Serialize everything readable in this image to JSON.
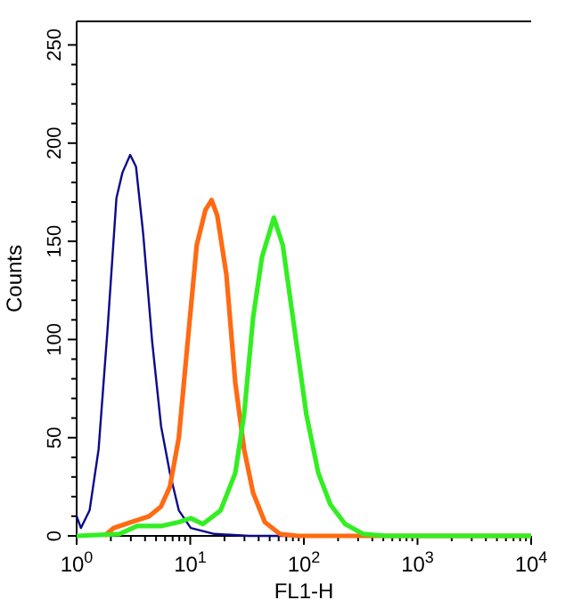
{
  "chart_data": {
    "type": "line",
    "xlabel": "FL1-H",
    "ylabel": "Counts",
    "log": "x",
    "xlim": [
      1,
      10000
    ],
    "ylim": [
      0,
      262
    ],
    "grid": false,
    "marker": "none",
    "line_style": "solid",
    "xticks": [
      {
        "value": 1,
        "label": "10$^{0}$"
      },
      {
        "value": 2,
        "label": null
      },
      {
        "value": 3,
        "label": null
      },
      {
        "value": 4,
        "label": null
      },
      {
        "value": 5,
        "label": null
      },
      {
        "value": 6,
        "label": null
      },
      {
        "value": 7,
        "label": null
      },
      {
        "value": 8,
        "label": null
      },
      {
        "value": 9,
        "label": null
      },
      {
        "value": 10,
        "label": "10$^{1}$"
      },
      {
        "value": 20,
        "label": null
      },
      {
        "value": 30,
        "label": null
      },
      {
        "value": 40,
        "label": null
      },
      {
        "value": 50,
        "label": null
      },
      {
        "value": 60,
        "label": null
      },
      {
        "value": 70,
        "label": null
      },
      {
        "value": 80,
        "label": null
      },
      {
        "value": 90,
        "label": null
      },
      {
        "value": 100,
        "label": "10$^{2}$"
      },
      {
        "value": 200,
        "label": null
      },
      {
        "value": 300,
        "label": null
      },
      {
        "value": 400,
        "label": null
      },
      {
        "value": 500,
        "label": null
      },
      {
        "value": 600,
        "label": null
      },
      {
        "value": 700,
        "label": null
      },
      {
        "value": 800,
        "label": null
      },
      {
        "value": 900,
        "label": null
      },
      {
        "value": 1000,
        "label": "10$^{3}$"
      },
      {
        "value": 2000,
        "label": null
      },
      {
        "value": 3000,
        "label": null
      },
      {
        "value": 4000,
        "label": null
      },
      {
        "value": 5000,
        "label": null
      },
      {
        "value": 6000,
        "label": null
      },
      {
        "value": 7000,
        "label": null
      },
      {
        "value": 8000,
        "label": null
      },
      {
        "value": 9000,
        "label": null
      },
      {
        "value": 10000,
        "label": "10$^{4}$"
      }
    ],
    "yticks": [
      0,
      {
        "value": 10,
        "label": null
      },
      {
        "value": 20,
        "label": null
      },
      {
        "value": 30,
        "label": null
      },
      {
        "value": 40,
        "label": null
      },
      50,
      {
        "value": 60,
        "label": null
      },
      {
        "value": 70,
        "label": null
      },
      {
        "value": 80,
        "label": null
      },
      {
        "value": 90,
        "label": null
      },
      100,
      {
        "value": 110,
        "label": null
      },
      {
        "value": 120,
        "label": null
      },
      {
        "value": 130,
        "label": null
      },
      {
        "value": 140,
        "label": null
      },
      150,
      {
        "value": 160,
        "label": null
      },
      {
        "value": 170,
        "label": null
      },
      {
        "value": 180,
        "label": null
      },
      {
        "value": 190,
        "label": null
      },
      200,
      {
        "value": 210,
        "label": null
      },
      {
        "value": 220,
        "label": null
      },
      {
        "value": 230,
        "label": null
      },
      {
        "value": 240,
        "label": null
      },
      250
    ],
    "series": [
      {
        "color": "#0a0a8c",
        "x": [
          1,
          1.09,
          1.3,
          1.56,
          1.87,
          2.24,
          2.53,
          2.96,
          3.33,
          3.85,
          4.62,
          5.53,
          6.62,
          7.93,
          10.1,
          16.3,
          33,
          10000
        ],
        "values": [
          10,
          4,
          13,
          44,
          105,
          172,
          185,
          194,
          188,
          154,
          99,
          56,
          32,
          13,
          4,
          1,
          0,
          0
        ]
      },
      {
        "color": "#ff6a13",
        "x": [
          1.76,
          2.11,
          3.03,
          4.34,
          5.53,
          6.62,
          7.93,
          9.5,
          11.4,
          13.6,
          15.4,
          17.3,
          20.8,
          24.9,
          29.8,
          35.7,
          45.3,
          61.3,
          88,
          10000
        ],
        "values": [
          0,
          4,
          7,
          10,
          15,
          25,
          50,
          99,
          148,
          166,
          171,
          163,
          133,
          78,
          44,
          22,
          7,
          1,
          0,
          0
        ]
      },
      {
        "color": "#33ee22",
        "x": [
          1,
          2.38,
          3.41,
          5.53,
          7.93,
          10.1,
          12.9,
          18.5,
          24.9,
          29.8,
          35.7,
          42.8,
          54.4,
          65.2,
          82.8,
          105,
          134,
          171,
          231,
          331,
          532,
          10000
        ],
        "values": [
          0,
          1,
          5,
          5,
          7,
          9,
          6,
          13,
          32,
          62,
          111,
          142,
          162,
          148,
          105,
          62,
          32,
          16,
          6,
          1,
          0,
          0
        ]
      }
    ]
  }
}
